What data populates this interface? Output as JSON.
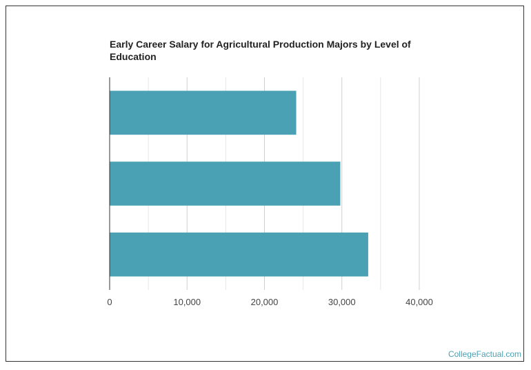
{
  "chart_data": {
    "type": "bar",
    "orientation": "horizontal",
    "title": "Early Career Salary for Agricultural Production Majors by Level of Education",
    "categories": [
      "",
      "",
      ""
    ],
    "values": [
      24100,
      29800,
      33400
    ],
    "xlabel": "",
    "ylabel": "",
    "xlim": [
      0,
      40000
    ],
    "x_ticks": [
      0,
      10000,
      20000,
      30000,
      40000
    ],
    "x_tick_labels": [
      "0",
      "10,000",
      "20,000",
      "30,000",
      "40,000"
    ],
    "minor_grid_step": 5000,
    "grid": true,
    "legend": "none",
    "bar_color": "#4aa1b3"
  },
  "watermark": "CollegeFactual.com"
}
